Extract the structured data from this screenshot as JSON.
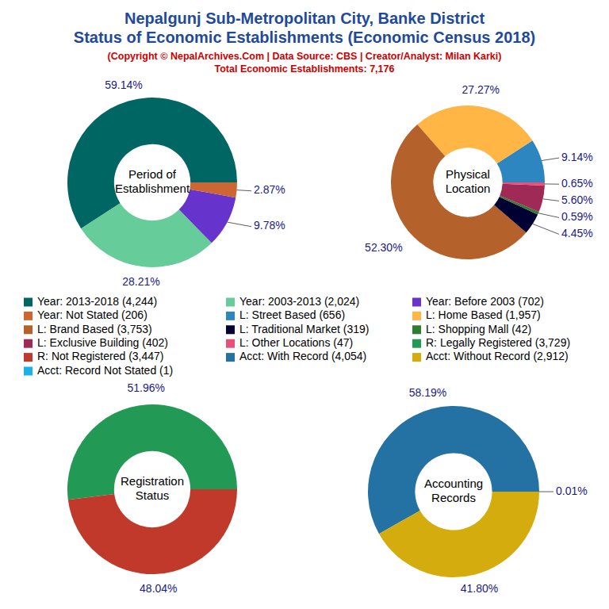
{
  "header": {
    "title": [
      "Nepalgunj Sub-Metropolitan City, Banke District",
      "Status of Economic Establishments (Economic Census 2018)"
    ],
    "subtitle": "(Copyright © NepalArchives.Com | Data Source: CBS | Creator/Analyst: Milan Karki)",
    "total": "Total Economic Establishments: 7,176"
  },
  "chart_data": [
    {
      "type": "donut",
      "title": "Period of Establishment",
      "categories": [
        "Year: 2013-2018 (4,244)",
        "Year: 2003-2013 (2,024)",
        "Year: Before 2003 (702)",
        "Year: Not Stated (206)"
      ],
      "values": [
        59.14,
        28.21,
        9.78,
        2.87
      ],
      "value_labels": [
        "59.14%",
        "28.21%",
        "9.78%",
        "2.87%"
      ],
      "colors": [
        "#006663",
        "#66cc99",
        "#6633cc",
        "#cc6633"
      ],
      "data_labels": true
    },
    {
      "type": "donut",
      "title": "Physical Location",
      "categories": [
        "L: Street Based (656)",
        "L: Home Based (1,957)",
        "L: Brand Based (3,753)",
        "L: Traditional Market (319)",
        "L: Shopping Mall (42)",
        "L: Exclusive Building (402)",
        "L: Other Locations (47)"
      ],
      "values": [
        9.14,
        27.27,
        52.3,
        4.45,
        0.59,
        5.6,
        0.65
      ],
      "value_labels": [
        "9.14%",
        "27.27%",
        "52.30%",
        "4.45%",
        "0.59%",
        "5.60%",
        "0.65%"
      ],
      "colors": [
        "#2e86c1",
        "#ffb644",
        "#b5612b",
        "#000033",
        "#2e7d32",
        "#9e2a55",
        "#e6507a"
      ],
      "data_labels": true
    },
    {
      "type": "donut",
      "title": "Registration Status",
      "categories": [
        "R: Legally Registered (3,729)",
        "R: Not Registered (3,447)"
      ],
      "values": [
        51.96,
        48.04
      ],
      "value_labels": [
        "51.96%",
        "48.04%"
      ],
      "colors": [
        "#229954",
        "#c0392b"
      ],
      "data_labels": true
    },
    {
      "type": "donut",
      "title": "Accounting Records",
      "categories": [
        "Acct: With Record (4,054)",
        "Acct: Without Record (2,912)",
        "Acct: Record Not Stated (1)"
      ],
      "values": [
        58.19,
        41.8,
        0.01
      ],
      "value_labels": [
        "58.19%",
        "41.80%",
        "0.01%"
      ],
      "colors": [
        "#2471a3",
        "#d4ac0d",
        "#1ab0e8"
      ],
      "data_labels": true
    }
  ]
}
